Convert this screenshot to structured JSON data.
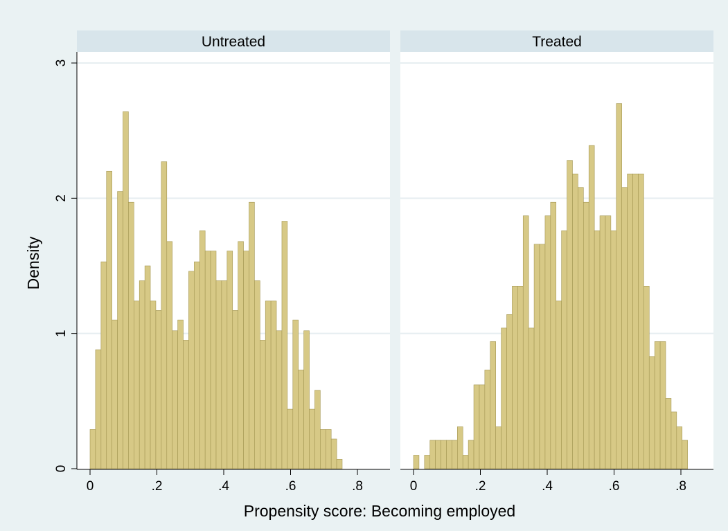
{
  "chart_data": {
    "type": "bar",
    "layout": "two-panel histogram",
    "ylabel": "Density",
    "xlabel": "Propensity score: Becoming employed",
    "ylim": [
      0,
      3
    ],
    "y_ticks": [
      "0",
      "1",
      "2",
      "3"
    ],
    "x_ticks": [
      "0",
      ".2",
      ".4",
      ".6",
      ".8"
    ],
    "bin_width": 0.0164,
    "grid": true,
    "colors": {
      "bar_fill": "#d7c986",
      "bar_stroke": "#a49753",
      "strip": "#d8e5eb",
      "background": "#eaf2f3",
      "plot_bg": "#ffffff"
    },
    "panels": [
      {
        "title": "Untreated",
        "bin_start": 0.0,
        "values": [
          0.29,
          0.88,
          1.53,
          2.2,
          1.1,
          2.05,
          2.64,
          1.97,
          1.24,
          1.39,
          1.5,
          1.24,
          1.17,
          2.27,
          1.68,
          1.02,
          1.1,
          0.95,
          1.46,
          1.53,
          1.76,
          1.61,
          1.61,
          1.39,
          1.39,
          1.61,
          1.17,
          1.68,
          1.61,
          1.97,
          1.39,
          0.95,
          1.24,
          1.24,
          1.02,
          1.83,
          0.44,
          1.1,
          0.73,
          1.02,
          0.44,
          0.58,
          0.29,
          0.29,
          0.22,
          0.07
        ]
      },
      {
        "title": "Treated",
        "bin_start": 0.0,
        "values": [
          0.1,
          0.0,
          0.1,
          0.21,
          0.21,
          0.21,
          0.21,
          0.21,
          0.31,
          0.1,
          0.21,
          0.62,
          0.62,
          0.73,
          0.94,
          0.31,
          1.04,
          1.14,
          1.35,
          1.35,
          1.87,
          1.04,
          1.66,
          1.66,
          1.87,
          1.97,
          1.24,
          1.76,
          2.28,
          2.18,
          2.08,
          1.97,
          2.39,
          1.76,
          1.87,
          1.87,
          1.76,
          2.7,
          2.08,
          2.18,
          2.18,
          2.18,
          1.35,
          0.83,
          0.94,
          0.94,
          0.52,
          0.42,
          0.31,
          0.21
        ]
      }
    ]
  }
}
